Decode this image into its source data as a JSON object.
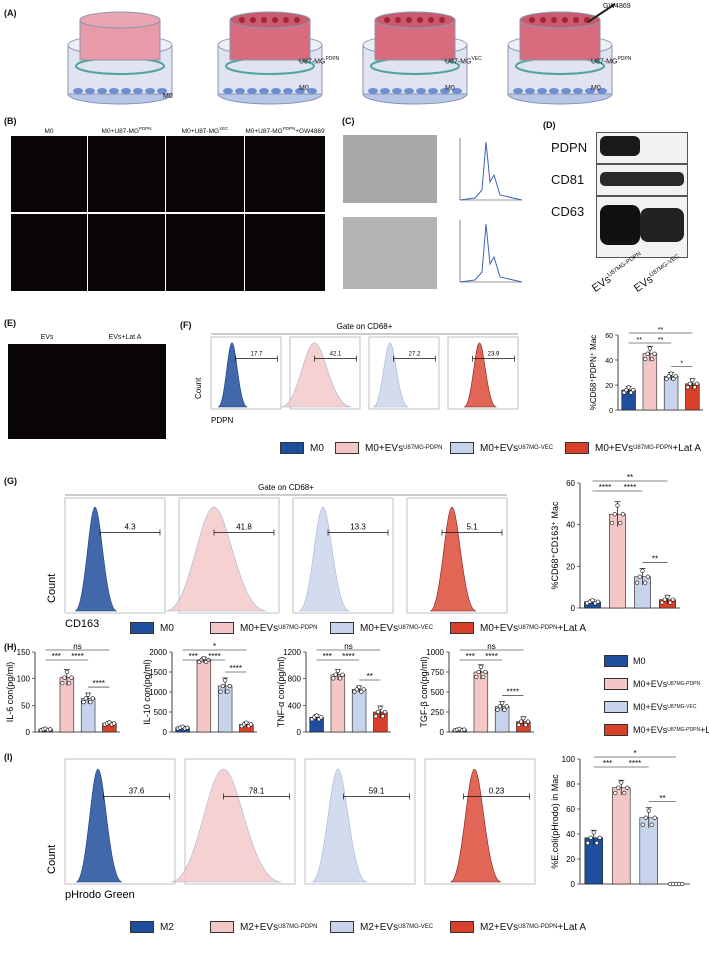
{
  "colors": {
    "m0": "#1f4e9c",
    "pdpn": "#f4c6c6",
    "vec": "#c7d3ea",
    "lat": "#d9402a",
    "m2": "#1f4e9c"
  },
  "panelA": {
    "label": "(A)",
    "cells": [
      "U87-MG",
      "U87-MG",
      "U87-MG"
    ],
    "sup": [
      "PDPN",
      "VEC",
      "PDPN"
    ],
    "m0": "M0",
    "drug": "GW4869"
  },
  "panelB": {
    "label": "(B)",
    "cols": [
      "M0",
      "M0+U87-MG",
      "M0+U87-MG",
      "M0+U87-MG"
    ],
    "sup": [
      "",
      "PDPN",
      "VEC",
      "PDPN"
    ],
    "tail": [
      "",
      "",
      "",
      "+GW4869"
    ]
  },
  "panelC": {
    "label": "(C)"
  },
  "panelD": {
    "label": "(D)",
    "rows": [
      "PDPN",
      "CD81",
      "CD63"
    ],
    "lanes": [
      "EVs",
      "EVs"
    ],
    "laneSup": [
      "U87MG-PDPN",
      "U87MG-VEC"
    ]
  },
  "panelE": {
    "label": "(E)",
    "cols": [
      "EVs",
      "EVs+Lat A"
    ]
  },
  "panelF": {
    "label": "(F)",
    "gate": "Gate on CD68",
    "gateSup": "+",
    "values": [
      "17.7",
      "42.1",
      "27.2",
      "23.9"
    ],
    "xlabel": "PDPN",
    "ylabel": "Count",
    "bar_ylabel": "%CD68⁺PDPN⁺ Mac"
  },
  "panelG": {
    "label": "(G)",
    "gate": "Gate on CD68",
    "gateSup": "+",
    "values": [
      "4.3",
      "41.8",
      "13.3",
      "5.1"
    ],
    "xlabel": "CD163",
    "ylabel": "Count",
    "bar_ylabel": "%CD68⁺CD163⁺ Mac"
  },
  "panelH": {
    "label": "(H)"
  },
  "panelI": {
    "label": "(I)",
    "values": [
      "37.6",
      "78.1",
      "59.1",
      "0.23"
    ],
    "xlabel": "pHrodo Green",
    "ylabel": "Count",
    "bar_ylabel": "%E.coli(pHrodo) in Mac"
  },
  "legendM0": {
    "items": [
      "M0",
      "M0+EVs",
      "M0+EVs",
      "M0+EVs"
    ],
    "sup": [
      "",
      "U87MG-PDPN",
      "U87MG-VEC",
      "U87MG-PDPN"
    ],
    "tail": [
      "",
      "",
      "",
      "+Lat A"
    ]
  },
  "legendM2": {
    "items": [
      "M2",
      "M2+EVs",
      "M2+EVs",
      "M2+EVs"
    ],
    "sup": [
      "",
      "U87MG-PDPN",
      "U87MG-VEC",
      "U87MG-PDPN"
    ],
    "tail": [
      "",
      "",
      "",
      "+Lat A"
    ]
  },
  "chart_data": [
    {
      "type": "bar",
      "panel": "F",
      "ylabel": "%CD68⁺PDPN⁺ Mac",
      "ylim": [
        0,
        60
      ],
      "yticks": [
        0,
        20,
        40,
        60
      ],
      "values": [
        16,
        45,
        27,
        21
      ],
      "errors": [
        3,
        6,
        3,
        4
      ],
      "sig": [
        "**",
        "**",
        "**",
        "*"
      ]
    },
    {
      "type": "bar",
      "panel": "G",
      "ylabel": "%CD68⁺CD163⁺ Mac",
      "ylim": [
        0,
        60
      ],
      "yticks": [
        0,
        20,
        40,
        60
      ],
      "values": [
        3,
        45,
        15,
        4
      ],
      "errors": [
        1,
        6,
        4,
        2
      ],
      "sig": [
        "**",
        "****",
        "****",
        "**"
      ]
    },
    {
      "type": "bar",
      "panel": "H1",
      "ylabel": "IL-6 con(pg/ml)",
      "ylim": [
        0,
        150
      ],
      "yticks": [
        0,
        50,
        100,
        150
      ],
      "values": [
        5,
        102,
        63,
        16
      ],
      "errors": [
        2,
        15,
        10,
        3
      ],
      "sig": [
        "ns",
        "****",
        "***",
        "****"
      ]
    },
    {
      "type": "bar",
      "panel": "H2",
      "ylabel": "IL-10 con(pg/ml)",
      "ylim": [
        0,
        2000
      ],
      "yticks": [
        0,
        500,
        1000,
        1500,
        2000
      ],
      "values": [
        110,
        1800,
        1150,
        190
      ],
      "errors": [
        30,
        70,
        200,
        60
      ],
      "sig": [
        "*",
        "****",
        "***",
        "****"
      ]
    },
    {
      "type": "bar",
      "panel": "H3",
      "ylabel": "TNF-α con(pg/ml)",
      "ylim": [
        0,
        1200
      ],
      "yticks": [
        0,
        400,
        800,
        1200
      ],
      "values": [
        220,
        860,
        640,
        300
      ],
      "errors": [
        40,
        80,
        50,
        90
      ],
      "sig": [
        "ns",
        "****",
        "***",
        "**"
      ]
    },
    {
      "type": "bar",
      "panel": "H4",
      "ylabel": "TGF-β con(pg/ml)",
      "ylim": [
        0,
        1000
      ],
      "yticks": [
        0,
        250,
        500,
        750,
        1000
      ],
      "values": [
        30,
        750,
        320,
        130
      ],
      "errors": [
        10,
        90,
        60,
        60
      ],
      "sig": [
        "ns",
        "****",
        "***",
        "****"
      ]
    },
    {
      "type": "bar",
      "panel": "I",
      "ylabel": "%E.coli(pHrodo) in Mac",
      "ylim": [
        0,
        100
      ],
      "yticks": [
        0,
        20,
        40,
        60,
        80,
        100
      ],
      "values": [
        37,
        77,
        53,
        0
      ],
      "errors": [
        6,
        6,
        8,
        0
      ],
      "sig": [
        "*",
        "****",
        "***",
        "**"
      ]
    }
  ]
}
